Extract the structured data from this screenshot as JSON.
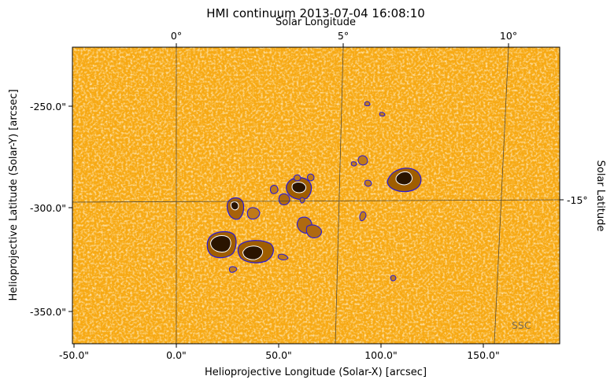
{
  "figure": {
    "title": "HMI continuum 2013-07-04 16:08:10",
    "xlabel": "Helioprojective Longitude (Solar-X) [arcsec]",
    "ylabel": "Helioprojective Latitude (Solar-Y) [arcsec]",
    "top_axis_label": "Solar Longitude",
    "right_axis_label": "Solar Latitude",
    "watermark": "SSC",
    "x_ticks": [
      "-50.0\"",
      "0.0\"",
      "50.0\"",
      "100.0\"",
      "150.0\""
    ],
    "y_ticks": [
      "-250.0\"",
      "-300.0\"",
      "-350.0\""
    ],
    "top_ticks": [
      "0°",
      "5°",
      "10°"
    ],
    "right_ticks": [
      "-15°"
    ],
    "colors": {
      "photosphere": "#f7a913",
      "photosphere_light": "#ffe9b0",
      "umbra": "#2a1400",
      "penumbra": "#9a5a00",
      "contour_outer": "#2a1ad8",
      "contour_inner": "#ffffff",
      "grid": "#3a3a3a"
    }
  }
}
